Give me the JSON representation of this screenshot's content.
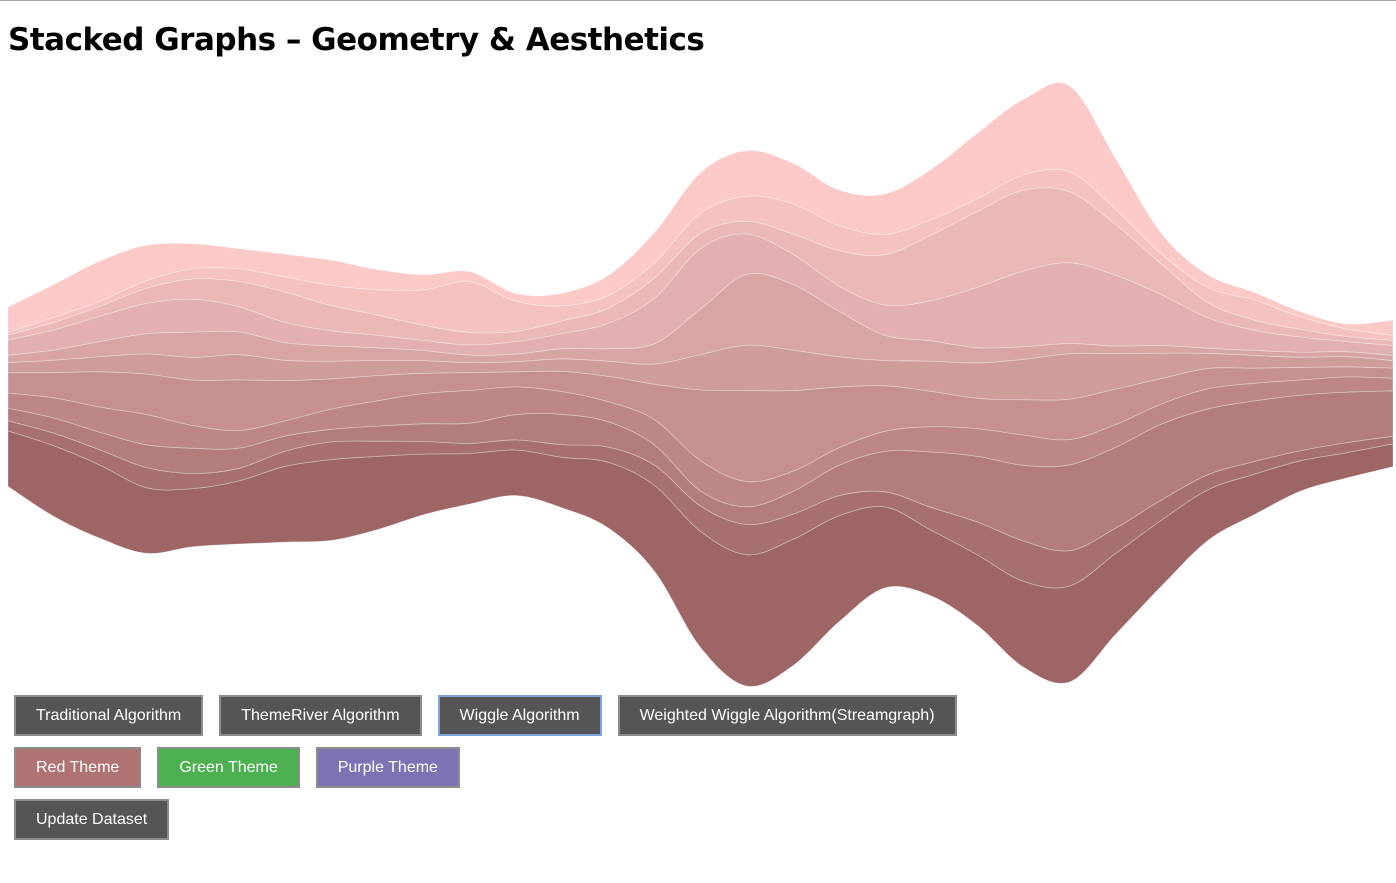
{
  "title": "Stacked Graphs – Geometry & Aesthetics",
  "algorithm_buttons": [
    {
      "label": "Traditional Algorithm"
    },
    {
      "label": "ThemeRiver Algorithm"
    },
    {
      "label": "Wiggle Algorithm",
      "active": true
    },
    {
      "label": "Weighted Wiggle Algorithm(Streamgraph)"
    }
  ],
  "theme_buttons": [
    {
      "label": "Red Theme",
      "color": "#af7373"
    },
    {
      "label": "Green Theme",
      "color": "#4caf50"
    },
    {
      "label": "Purple Theme",
      "color": "#7b73b4"
    }
  ],
  "update_button": {
    "label": "Update Dataset"
  },
  "chart_data": {
    "type": "area",
    "layout": "wiggle",
    "grid": false,
    "x": [
      0,
      1,
      2,
      3,
      4,
      5,
      6,
      7,
      8,
      9,
      10,
      11,
      12,
      13,
      14,
      15,
      16,
      17,
      18,
      19,
      20,
      21,
      22,
      23,
      24,
      25,
      26,
      27,
      28,
      29,
      30
    ],
    "layer_colors": [
      "#9d6566",
      "#a77070",
      "#b27d7d",
      "#bc8787",
      "#c59090",
      "#cf9c9c",
      "#d8a5a5",
      "#e2b0b0",
      "#ebb8b8",
      "#f5c2c2",
      "#fcc9c9"
    ],
    "series": [
      {
        "values": [
          2.2,
          2.8,
          2.9,
          2.6,
          2.3,
          2.5,
          3.0,
          3.2,
          2.9,
          2.4,
          2.0,
          1.8,
          2.0,
          2.6,
          3.4,
          4.6,
          5.2,
          5.0,
          4.2,
          3.2,
          2.6,
          2.8,
          3.4,
          3.8,
          3.2,
          2.6,
          2.0,
          1.6,
          1.2,
          1.0,
          0.9
        ]
      },
      {
        "values": [
          0.4,
          0.5,
          0.6,
          0.8,
          0.6,
          0.5,
          0.6,
          0.7,
          0.6,
          0.5,
          0.4,
          0.4,
          0.5,
          0.6,
          0.8,
          1.0,
          1.2,
          1.0,
          0.8,
          0.6,
          0.9,
          1.3,
          1.6,
          1.4,
          1.0,
          0.8,
          0.6,
          0.5,
          0.4,
          0.4,
          0.3
        ]
      },
      {
        "values": [
          0.5,
          0.6,
          0.7,
          0.9,
          1.0,
          0.8,
          0.6,
          0.5,
          0.6,
          0.7,
          0.8,
          1.0,
          1.2,
          1.0,
          0.8,
          0.6,
          0.7,
          0.9,
          1.2,
          1.6,
          2.2,
          2.6,
          3.0,
          3.4,
          3.2,
          3.0,
          2.6,
          2.4,
          2.2,
          2.0,
          1.8
        ]
      },
      {
        "values": [
          0.6,
          0.8,
          1.0,
          1.2,
          0.9,
          0.7,
          0.6,
          0.8,
          1.0,
          1.2,
          1.3,
          1.1,
          0.9,
          0.8,
          1.0,
          1.2,
          1.0,
          0.8,
          0.7,
          0.8,
          1.0,
          1.1,
          1.2,
          1.0,
          0.9,
          0.8,
          0.8,
          0.7,
          0.6,
          0.6,
          0.5
        ]
      },
      {
        "values": [
          0.8,
          1.0,
          1.4,
          1.6,
          1.8,
          2.0,
          1.6,
          1.2,
          1.0,
          0.8,
          0.7,
          0.6,
          0.8,
          1.0,
          1.4,
          2.8,
          3.6,
          3.2,
          2.4,
          1.8,
          1.4,
          1.2,
          1.4,
          1.6,
          1.4,
          1.0,
          0.8,
          0.6,
          0.5,
          0.4,
          0.4
        ]
      },
      {
        "values": [
          0.4,
          0.5,
          0.6,
          0.8,
          0.9,
          1.0,
          0.8,
          0.7,
          0.6,
          0.5,
          0.4,
          0.4,
          0.5,
          0.6,
          0.8,
          1.4,
          1.8,
          1.6,
          1.2,
          1.0,
          1.2,
          1.4,
          1.6,
          1.8,
          1.4,
          1.0,
          0.6,
          0.5,
          0.4,
          0.4,
          0.3
        ]
      },
      {
        "values": [
          0.3,
          0.4,
          0.6,
          0.8,
          1.0,
          0.9,
          0.7,
          0.6,
          0.5,
          0.4,
          0.3,
          0.3,
          0.4,
          0.5,
          0.8,
          1.8,
          2.8,
          2.6,
          1.8,
          1.0,
          0.8,
          0.6,
          0.5,
          0.4,
          0.3,
          0.3,
          0.2,
          0.2,
          0.2,
          0.2,
          0.2
        ]
      },
      {
        "values": [
          0.6,
          0.8,
          1.0,
          1.2,
          1.3,
          1.0,
          0.8,
          0.6,
          0.5,
          0.4,
          0.4,
          0.5,
          0.6,
          1.0,
          1.8,
          2.4,
          1.6,
          1.2,
          1.0,
          1.2,
          1.6,
          2.4,
          3.0,
          3.2,
          2.8,
          2.0,
          1.2,
          0.8,
          0.6,
          0.4,
          0.4
        ]
      },
      {
        "values": [
          0.2,
          0.3,
          0.4,
          0.6,
          0.8,
          1.0,
          1.2,
          1.0,
          0.8,
          0.6,
          0.5,
          0.4,
          0.5,
          0.6,
          0.8,
          0.6,
          0.5,
          0.8,
          1.4,
          2.0,
          2.6,
          3.0,
          3.2,
          2.8,
          2.0,
          1.2,
          0.6,
          0.4,
          0.3,
          0.2,
          0.2
        ]
      },
      {
        "values": [
          0.1,
          0.2,
          0.2,
          0.3,
          0.4,
          0.5,
          0.6,
          0.8,
          1.0,
          1.4,
          2.0,
          1.2,
          0.6,
          0.5,
          0.6,
          0.8,
          1.0,
          1.2,
          1.0,
          0.8,
          0.6,
          0.5,
          0.6,
          0.8,
          0.6,
          0.4,
          0.6,
          0.8,
          0.5,
          0.3,
          0.2
        ]
      },
      {
        "values": [
          1.0,
          1.3,
          1.6,
          1.4,
          1.0,
          0.8,
          0.9,
          1.0,
          0.8,
          0.6,
          0.4,
          0.3,
          0.5,
          0.8,
          1.2,
          1.6,
          1.8,
          1.6,
          1.4,
          1.6,
          2.0,
          2.6,
          3.0,
          3.4,
          2.0,
          0.8,
          0.5,
          0.3,
          0.2,
          0.2,
          0.6
        ]
      }
    ]
  }
}
